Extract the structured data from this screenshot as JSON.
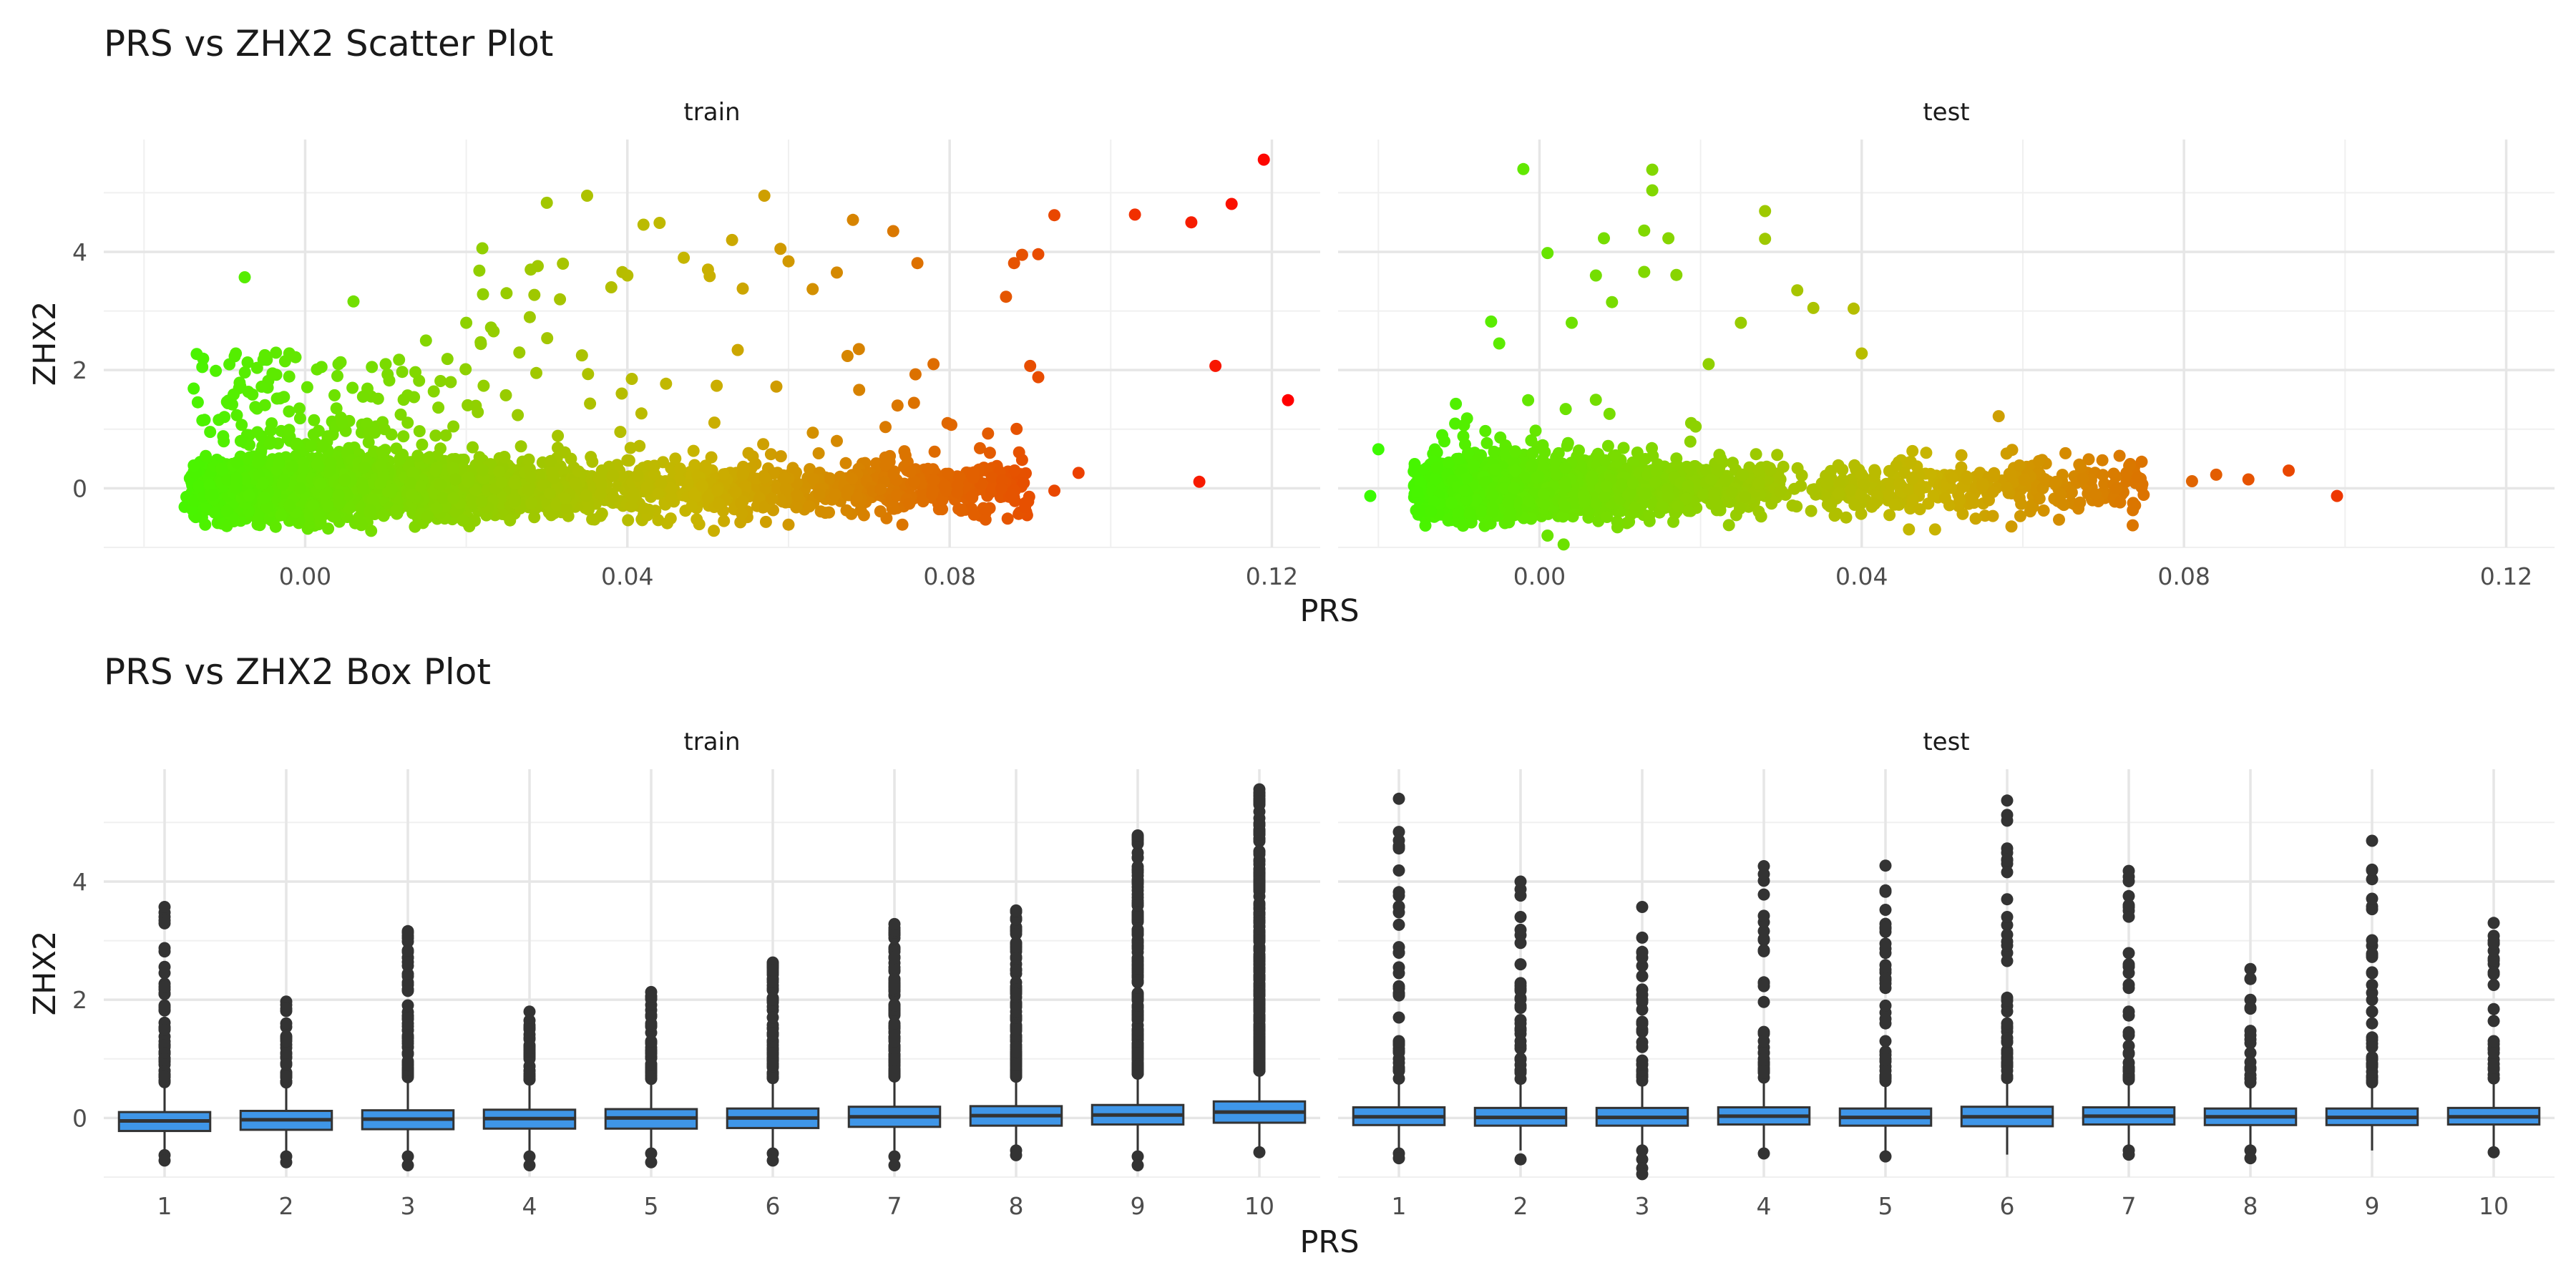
{
  "titles": {
    "scatter": "PRS vs ZHX2 Scatter Plot",
    "box": "PRS vs ZHX2 Box Plot"
  },
  "chart_data": [
    {
      "type": "scatter",
      "title": "PRS vs ZHX2 Scatter Plot",
      "xlabel": "PRS",
      "ylabel": "ZHX2",
      "xlim": [
        -0.025,
        0.126
      ],
      "ylim": [
        -1.0,
        5.9
      ],
      "x_ticks": [
        0.0,
        0.04,
        0.08,
        0.12
      ],
      "x_tick_labels": [
        "0.00",
        "0.04",
        "0.08",
        "0.12"
      ],
      "y_ticks": [
        0,
        2,
        4
      ],
      "y_tick_labels": [
        "0",
        "2",
        "4"
      ],
      "grid": true,
      "color_gradient": [
        "#33ff00",
        "#c8b400",
        "#ff0000"
      ],
      "facets": [
        {
          "name": "train",
          "points": [
            [
              -0.0075,
              3.57
            ],
            [
              0.006,
              3.16
            ],
            [
              0.022,
              4.06
            ],
            [
              0.03,
              4.83
            ],
            [
              0.035,
              4.95
            ],
            [
              0.042,
              4.46
            ],
            [
              0.044,
              4.49
            ],
            [
              0.057,
              4.95
            ],
            [
              0.059,
              4.05
            ],
            [
              0.068,
              4.54
            ],
            [
              0.073,
              4.35
            ],
            [
              0.076,
              3.81
            ],
            [
              0.087,
              3.24
            ],
            [
              0.088,
              3.81
            ],
            [
              0.089,
              3.95
            ],
            [
              0.091,
              3.96
            ],
            [
              0.093,
              4.62
            ],
            [
              0.103,
              4.63
            ],
            [
              0.11,
              4.5
            ],
            [
              0.115,
              4.81
            ],
            [
              0.119,
              5.56
            ],
            [
              0.113,
              2.07
            ],
            [
              0.122,
              1.49
            ],
            [
              0.09,
              2.07
            ],
            [
              0.091,
              1.88
            ],
            [
              0.078,
              2.1
            ],
            [
              0.111,
              0.11
            ],
            [
              0.096,
              0.26
            ],
            [
              0.093,
              -0.04
            ],
            [
              0.085,
              0.6
            ],
            [
              0.089,
              0.48
            ],
            [
              0.083,
              0.27
            ],
            [
              0.081,
              0.05
            ],
            [
              0.072,
              0.52
            ],
            [
              0.075,
              -0.26
            ],
            [
              0.066,
              0.8
            ],
            [
              0.066,
              3.65
            ],
            [
              0.063,
              3.37
            ],
            [
              0.06,
              3.84
            ],
            [
              0.053,
              4.2
            ],
            [
              0.05,
              3.7
            ],
            [
              0.047,
              3.9
            ],
            [
              0.04,
              3.6
            ],
            [
              0.038,
              3.4
            ],
            [
              0.032,
              3.8
            ],
            [
              0.028,
              3.7
            ],
            [
              0.025,
              3.3
            ],
            [
              0.02,
              2.8
            ],
            [
              0.015,
              2.5
            ],
            [
              0.01,
              2.1
            ],
            [
              0.004,
              1.9
            ],
            [
              -0.002,
              1.3
            ],
            [
              -0.008,
              0.8
            ]
          ]
        },
        {
          "name": "test",
          "points": [
            [
              -0.002,
              5.4
            ],
            [
              0.014,
              5.39
            ],
            [
              0.014,
              5.04
            ],
            [
              0.028,
              4.69
            ],
            [
              0.013,
              4.36
            ],
            [
              0.008,
              4.23
            ],
            [
              0.016,
              4.23
            ],
            [
              0.028,
              4.22
            ],
            [
              0.001,
              3.98
            ],
            [
              0.007,
              3.6
            ],
            [
              0.013,
              3.66
            ],
            [
              0.017,
              3.61
            ],
            [
              0.032,
              3.35
            ],
            [
              0.039,
              3.04
            ],
            [
              0.04,
              2.28
            ],
            [
              0.009,
              3.15
            ],
            [
              0.004,
              2.8
            ],
            [
              -0.006,
              2.82
            ],
            [
              -0.005,
              2.45
            ],
            [
              0.021,
              2.1
            ],
            [
              0.025,
              2.8
            ],
            [
              0.034,
              3.05
            ],
            [
              0.057,
              1.22
            ],
            [
              0.048,
              0.6
            ],
            [
              0.062,
              0.46
            ],
            [
              0.067,
              0.4
            ],
            [
              0.072,
              0.55
            ],
            [
              0.075,
              -0.11
            ],
            [
              0.081,
              0.12
            ],
            [
              0.084,
              0.23
            ],
            [
              0.088,
              0.15
            ],
            [
              0.093,
              0.3
            ],
            [
              0.099,
              -0.13
            ],
            [
              0.064,
              0.1
            ],
            [
              0.069,
              -0.1
            ],
            [
              0.053,
              0.2
            ],
            [
              -0.01,
              0.5
            ],
            [
              -0.02,
              0.66
            ],
            [
              -0.021,
              -0.13
            ],
            [
              0.003,
              -0.95
            ],
            [
              0.001,
              -0.8
            ]
          ]
        }
      ]
    },
    {
      "type": "box",
      "title": "PRS vs ZHX2 Box Plot",
      "xlabel": "PRS",
      "ylabel": "ZHX2",
      "categories": [
        "1",
        "2",
        "3",
        "4",
        "5",
        "6",
        "7",
        "8",
        "9",
        "10"
      ],
      "ylim": [
        -1.0,
        5.9
      ],
      "y_ticks": [
        0,
        2,
        4
      ],
      "y_tick_labels": [
        "0",
        "2",
        "4"
      ],
      "box_color": "#3f96e8",
      "grid": true,
      "facets": [
        {
          "name": "train",
          "boxes": [
            {
              "q1": -0.22,
              "median": -0.05,
              "q3": 0.1,
              "wmin": -0.6,
              "wmax": 0.55,
              "outliers": [
                3.57,
                1.1,
                1.0,
                0.9,
                0.8,
                0.7,
                -0.63,
                -0.72
              ]
            },
            {
              "q1": -0.2,
              "median": -0.03,
              "q3": 0.12,
              "wmin": -0.58,
              "wmax": 0.55,
              "outliers": [
                1.97,
                1.85,
                1.6,
                1.3,
                1.1,
                0.9,
                0.7,
                -0.65,
                -0.75
              ]
            },
            {
              "q1": -0.19,
              "median": -0.02,
              "q3": 0.13,
              "wmin": -0.6,
              "wmax": 0.6,
              "outliers": [
                3.16,
                2.25,
                2.15,
                1.6,
                1.3,
                1.1,
                0.9,
                -0.65,
                -0.8
              ]
            },
            {
              "q1": -0.18,
              "median": -0.01,
              "q3": 0.14,
              "wmin": -0.6,
              "wmax": 0.6,
              "outliers": [
                1.8,
                1.65,
                1.5,
                1.2,
                1.0,
                0.8,
                -0.65,
                -0.8
              ]
            },
            {
              "q1": -0.18,
              "median": 0.0,
              "q3": 0.15,
              "wmin": -0.58,
              "wmax": 0.6,
              "outliers": [
                2.13,
                2.05,
                1.6,
                1.3,
                1.1,
                0.9,
                -0.6,
                -0.75
              ]
            },
            {
              "q1": -0.17,
              "median": 0.0,
              "q3": 0.16,
              "wmin": -0.58,
              "wmax": 0.62,
              "outliers": [
                2.63,
                2.5,
                2.3,
                2.0,
                1.7,
                1.4,
                1.1,
                0.9,
                -0.6,
                -0.72
              ]
            },
            {
              "q1": -0.15,
              "median": 0.02,
              "q3": 0.19,
              "wmin": -0.55,
              "wmax": 0.65,
              "outliers": [
                3.28,
                2.35,
                2.2,
                1.9,
                1.6,
                1.3,
                1.0,
                0.8,
                -0.65,
                -0.8
              ]
            },
            {
              "q1": -0.13,
              "median": 0.04,
              "q3": 0.2,
              "wmin": -0.55,
              "wmax": 0.65,
              "outliers": [
                3.51,
                2.7,
                2.5,
                2.1,
                1.8,
                1.5,
                1.2,
                0.9,
                -0.55,
                -0.63
              ]
            },
            {
              "q1": -0.11,
              "median": 0.05,
              "q3": 0.22,
              "wmin": -0.55,
              "wmax": 0.7,
              "outliers": [
                4.78,
                4.2,
                4.1,
                3.4,
                3.1,
                2.7,
                2.3,
                1.9,
                1.5,
                1.1,
                0.8,
                -0.65,
                -0.8
              ]
            },
            {
              "q1": -0.08,
              "median": 0.1,
              "q3": 0.28,
              "wmin": -0.55,
              "wmax": 0.75,
              "outliers": [
                5.56,
                4.95,
                4.8,
                4.5,
                4.2,
                3.9,
                3.6,
                3.3,
                3.0,
                2.7,
                2.4,
                2.1,
                1.8,
                1.5,
                1.2,
                0.9,
                -0.58
              ]
            }
          ]
        },
        {
          "name": "test",
          "boxes": [
            {
              "q1": -0.12,
              "median": 0.02,
              "q3": 0.18,
              "wmin": -0.55,
              "wmax": 0.6,
              "outliers": [
                5.4,
                2.8,
                2.45,
                1.7,
                1.3,
                1.0,
                0.8,
                -0.6,
                -0.68
              ]
            },
            {
              "q1": -0.13,
              "median": 0.01,
              "q3": 0.17,
              "wmin": -0.55,
              "wmax": 0.58,
              "outliers": [
                4.0,
                3.4,
                2.6,
                1.9,
                1.6,
                1.3,
                1.0,
                0.8,
                -0.7
              ]
            },
            {
              "q1": -0.13,
              "median": 0.01,
              "q3": 0.17,
              "wmin": -0.55,
              "wmax": 0.58,
              "outliers": [
                3.57,
                3.05,
                2.8,
                2.4,
                2.0,
                1.6,
                1.2,
                0.9,
                -0.55,
                -0.7,
                -0.85,
                -0.95
              ]
            },
            {
              "q1": -0.11,
              "median": 0.03,
              "q3": 0.18,
              "wmin": -0.55,
              "wmax": 0.6,
              "outliers": [
                4.26,
                3.78,
                3.42,
                2.82,
                1.3,
                1.0,
                0.8,
                -0.6
              ]
            },
            {
              "q1": -0.13,
              "median": 0.01,
              "q3": 0.16,
              "wmin": -0.57,
              "wmax": 0.57,
              "outliers": [
                4.27,
                3.15,
                2.2,
                1.9,
                1.6,
                1.3,
                1.0,
                0.8,
                -0.65
              ]
            },
            {
              "q1": -0.14,
              "median": 0.02,
              "q3": 0.19,
              "wmin": -0.62,
              "wmax": 0.6,
              "outliers": [
                5.37,
                5.03,
                4.36,
                3.7,
                3.4,
                3.1,
                1.6,
                1.3,
                1.0,
                0.8
              ]
            },
            {
              "q1": -0.11,
              "median": 0.03,
              "q3": 0.18,
              "wmin": -0.55,
              "wmax": 0.6,
              "outliers": [
                4.18,
                3.6,
                2.6,
                2.2,
                1.8,
                1.4,
                1.1,
                0.85,
                -0.55,
                -0.62
              ]
            },
            {
              "q1": -0.12,
              "median": 0.02,
              "q3": 0.16,
              "wmin": -0.55,
              "wmax": 0.55,
              "outliers": [
                2.52,
                1.85,
                1.4,
                1.1,
                0.85,
                -0.55,
                -0.68
              ]
            },
            {
              "q1": -0.12,
              "median": 0.01,
              "q3": 0.16,
              "wmin": -0.55,
              "wmax": 0.55,
              "outliers": [
                4.69,
                4.2,
                2.78,
                2.25,
                2.0,
                1.6,
                1.2,
                0.9
              ]
            },
            {
              "q1": -0.11,
              "median": 0.02,
              "q3": 0.17,
              "wmin": -0.55,
              "wmax": 0.57,
              "outliers": [
                3.3,
                3.0,
                2.95,
                2.25,
                1.3,
                1.1,
                0.85,
                -0.58
              ]
            }
          ]
        }
      ]
    }
  ]
}
